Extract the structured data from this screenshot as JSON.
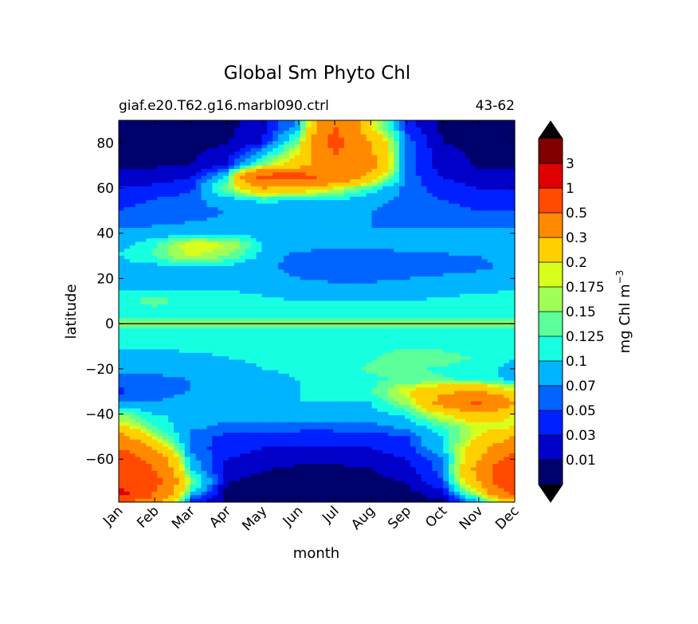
{
  "chart_data": {
    "type": "heatmap",
    "title": "Global Sm Phyto Chl",
    "subtitle_left": "giaf.e20.T62.g16.marbl090.ctrl",
    "subtitle_right": "43-62",
    "xlabel": "month",
    "ylabel": "latitude",
    "x_tick_labels": [
      "Jan",
      "Feb",
      "Mar",
      "Apr",
      "May",
      "Jun",
      "Jul",
      "Aug",
      "Sep",
      "Oct",
      "Nov",
      "Dec"
    ],
    "y_ticks": [
      80,
      60,
      40,
      20,
      0,
      -20,
      -40,
      -60
    ],
    "y_tick_labels": [
      "80",
      "60",
      "40",
      "20",
      "0",
      "−20",
      "−40",
      "−60"
    ],
    "xlim": [
      0,
      11
    ],
    "ylim": [
      -79,
      90
    ],
    "colorbar": {
      "label": "mg Chl m",
      "label_superscript": "−3",
      "level_labels": [
        "0.01",
        "0.03",
        "0.05",
        "0.07",
        "0.1",
        "0.125",
        "0.15",
        "0.175",
        "0.2",
        "0.3",
        "0.5",
        "1",
        "3"
      ],
      "colors": [
        "#00006a",
        "#0000c8",
        "#0020ff",
        "#0064ff",
        "#00b4ff",
        "#16ffe1",
        "#5cff9a",
        "#a0ff56",
        "#d8ff1e",
        "#ffd000",
        "#ff8a00",
        "#ff4a00",
        "#e00000",
        "#800000"
      ],
      "extend": "both",
      "under_color": "#000000",
      "over_color": "#000000"
    },
    "z_grid": {
      "months": [
        "Jan",
        "Feb",
        "Mar",
        "Apr",
        "May",
        "Jun",
        "Jul",
        "Aug",
        "Sep",
        "Oct",
        "Nov",
        "Dec"
      ],
      "latitudes": [
        87,
        80,
        70,
        65,
        60,
        55,
        50,
        45,
        40,
        35,
        30,
        25,
        20,
        15,
        10,
        5,
        2,
        0,
        -2,
        -5,
        -10,
        -15,
        -20,
        -25,
        -30,
        -35,
        -40,
        -45,
        -50,
        -55,
        -60,
        -65,
        -70,
        -75,
        -78
      ],
      "values": [
        [
          0.005,
          0.005,
          0.005,
          0.006,
          0.02,
          0.08,
          0.5,
          0.2,
          0.04,
          0.005,
          0.005,
          0.005
        ],
        [
          0.005,
          0.005,
          0.005,
          0.008,
          0.03,
          0.15,
          0.6,
          0.3,
          0.06,
          0.01,
          0.005,
          0.005
        ],
        [
          0.008,
          0.008,
          0.01,
          0.03,
          0.15,
          0.25,
          0.4,
          0.35,
          0.06,
          0.02,
          0.008,
          0.008
        ],
        [
          0.02,
          0.02,
          0.03,
          0.1,
          0.6,
          0.6,
          0.45,
          0.25,
          0.06,
          0.03,
          0.02,
          0.02
        ],
        [
          0.03,
          0.035,
          0.04,
          0.15,
          0.3,
          0.25,
          0.2,
          0.12,
          0.06,
          0.04,
          0.03,
          0.03
        ],
        [
          0.045,
          0.05,
          0.06,
          0.09,
          0.11,
          0.1,
          0.1,
          0.08,
          0.06,
          0.05,
          0.045,
          0.045
        ],
        [
          0.05,
          0.055,
          0.06,
          0.07,
          0.08,
          0.08,
          0.075,
          0.07,
          0.065,
          0.055,
          0.05,
          0.05
        ],
        [
          0.06,
          0.065,
          0.07,
          0.075,
          0.08,
          0.08,
          0.075,
          0.07,
          0.065,
          0.06,
          0.06,
          0.06
        ],
        [
          0.075,
          0.08,
          0.085,
          0.09,
          0.085,
          0.08,
          0.075,
          0.07,
          0.075,
          0.08,
          0.075,
          0.075
        ],
        [
          0.09,
          0.12,
          0.2,
          0.18,
          0.1,
          0.085,
          0.08,
          0.08,
          0.085,
          0.09,
          0.09,
          0.09
        ],
        [
          0.1,
          0.13,
          0.18,
          0.15,
          0.09,
          0.06,
          0.055,
          0.055,
          0.06,
          0.065,
          0.07,
          0.085
        ],
        [
          0.085,
          0.09,
          0.1,
          0.09,
          0.075,
          0.06,
          0.05,
          0.05,
          0.055,
          0.06,
          0.065,
          0.075
        ],
        [
          0.09,
          0.09,
          0.09,
          0.085,
          0.08,
          0.07,
          0.065,
          0.065,
          0.07,
          0.075,
          0.08,
          0.085
        ],
        [
          0.1,
          0.1,
          0.1,
          0.1,
          0.095,
          0.085,
          0.08,
          0.08,
          0.085,
          0.09,
          0.095,
          0.1
        ],
        [
          0.11,
          0.14,
          0.11,
          0.11,
          0.105,
          0.1,
          0.1,
          0.1,
          0.1,
          0.105,
          0.11,
          0.11
        ],
        [
          0.11,
          0.11,
          0.11,
          0.11,
          0.11,
          0.105,
          0.105,
          0.105,
          0.105,
          0.11,
          0.11,
          0.11
        ],
        [
          0.13,
          0.13,
          0.13,
          0.13,
          0.13,
          0.13,
          0.13,
          0.13,
          0.13,
          0.13,
          0.13,
          0.13
        ],
        [
          0.16,
          0.16,
          0.16,
          0.16,
          0.16,
          0.16,
          0.16,
          0.16,
          0.16,
          0.16,
          0.16,
          0.16
        ],
        [
          0.13,
          0.13,
          0.13,
          0.13,
          0.13,
          0.13,
          0.13,
          0.13,
          0.13,
          0.13,
          0.13,
          0.13
        ],
        [
          0.11,
          0.11,
          0.11,
          0.11,
          0.11,
          0.11,
          0.11,
          0.11,
          0.11,
          0.11,
          0.11,
          0.11
        ],
        [
          0.105,
          0.105,
          0.105,
          0.105,
          0.105,
          0.105,
          0.105,
          0.11,
          0.12,
          0.115,
          0.11,
          0.105
        ],
        [
          0.09,
          0.09,
          0.095,
          0.1,
          0.105,
          0.105,
          0.11,
          0.12,
          0.15,
          0.14,
          0.12,
          0.1
        ],
        [
          0.075,
          0.075,
          0.08,
          0.09,
          0.1,
          0.105,
          0.11,
          0.13,
          0.13,
          0.12,
          0.11,
          0.09
        ],
        [
          0.065,
          0.065,
          0.07,
          0.08,
          0.09,
          0.1,
          0.11,
          0.12,
          0.13,
          0.13,
          0.12,
          0.09
        ],
        [
          0.045,
          0.06,
          0.07,
          0.075,
          0.085,
          0.1,
          0.105,
          0.12,
          0.2,
          0.28,
          0.3,
          0.2
        ],
        [
          0.07,
          0.07,
          0.08,
          0.085,
          0.095,
          0.1,
          0.1,
          0.1,
          0.16,
          0.35,
          0.55,
          0.3
        ],
        [
          0.15,
          0.1,
          0.09,
          0.085,
          0.09,
          0.09,
          0.09,
          0.09,
          0.11,
          0.2,
          0.28,
          0.2
        ],
        [
          0.2,
          0.12,
          0.08,
          0.065,
          0.065,
          0.06,
          0.06,
          0.065,
          0.08,
          0.13,
          0.18,
          0.18
        ],
        [
          0.35,
          0.17,
          0.06,
          0.045,
          0.04,
          0.04,
          0.04,
          0.04,
          0.05,
          0.1,
          0.2,
          0.3
        ],
        [
          0.5,
          0.28,
          0.06,
          0.04,
          0.03,
          0.03,
          0.03,
          0.03,
          0.04,
          0.1,
          0.25,
          0.4
        ],
        [
          0.7,
          0.4,
          0.08,
          0.03,
          0.02,
          0.015,
          0.015,
          0.02,
          0.03,
          0.06,
          0.3,
          0.6
        ],
        [
          0.8,
          0.5,
          0.1,
          0.02,
          0.01,
          0.005,
          0.005,
          0.008,
          0.02,
          0.06,
          0.35,
          0.8
        ],
        [
          0.8,
          0.6,
          0.15,
          0.01,
          0.005,
          0.005,
          0.005,
          0.005,
          0.01,
          0.05,
          0.3,
          0.8
        ],
        [
          1.2,
          0.5,
          0.1,
          0.005,
          0.005,
          0.005,
          0.005,
          0.005,
          0.005,
          0.02,
          0.2,
          0.6
        ],
        [
          0.6,
          0.4,
          0.05,
          0.005,
          0.005,
          0.005,
          0.005,
          0.005,
          0.005,
          0.01,
          0.1,
          0.3
        ]
      ]
    }
  }
}
